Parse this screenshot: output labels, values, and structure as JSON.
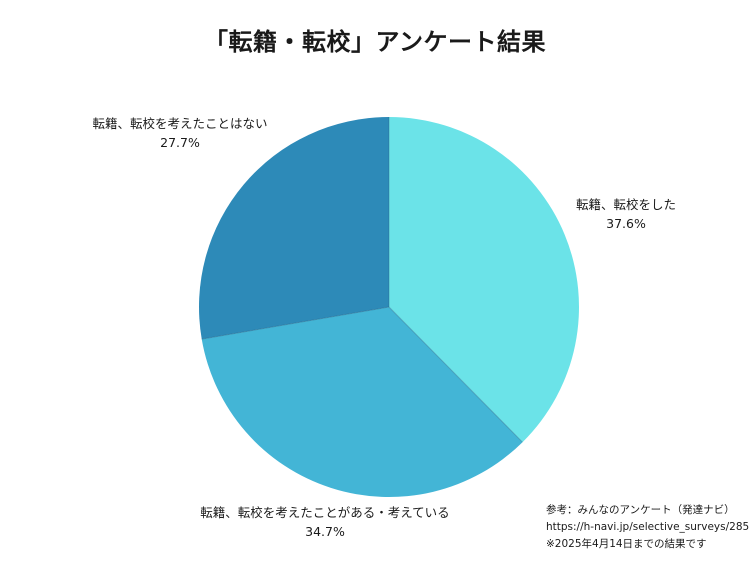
{
  "chart_data": {
    "type": "pie",
    "title": "「転籍・転校」アンケート結果",
    "slices": [
      {
        "label": "転籍、転校をした",
        "value": 37.6,
        "value_label": "37.6%",
        "color": "#6be3e8"
      },
      {
        "label": "転籍、転校を考えたことがある・考えている",
        "value": 34.7,
        "value_label": "34.7%",
        "color": "#43b5d6"
      },
      {
        "label": "転籍、転校を考えたことはない",
        "value": 27.7,
        "value_label": "27.7%",
        "color": "#2d8ab8"
      }
    ],
    "start_angle": "12 o'clock",
    "direction": "clockwise"
  },
  "source": {
    "line1": "参考：みんなのアンケート（発達ナビ）",
    "line2": "https://h-navi.jp/selective_surveys/285",
    "line3": "※2025年4月14日までの結果です"
  }
}
